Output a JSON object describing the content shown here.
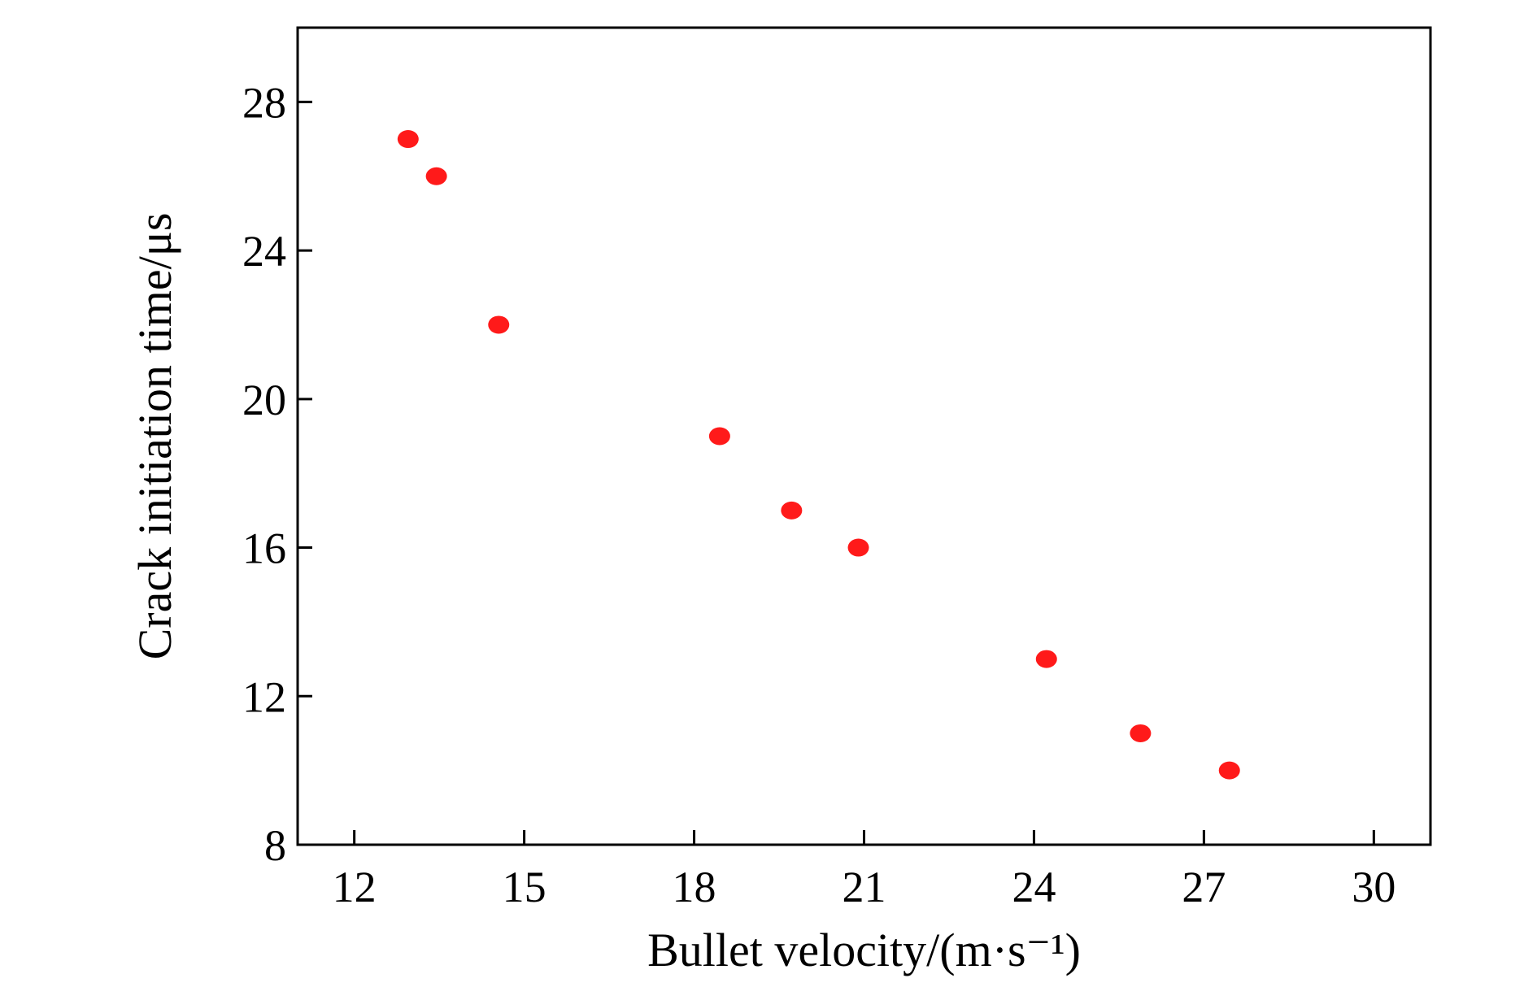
{
  "chart_data": {
    "type": "scatter",
    "title": "",
    "xlabel": "Bullet velocity/(m·s⁻¹)",
    "ylabel": "Crack initiation time/μs",
    "xlim": [
      11,
      31
    ],
    "ylim": [
      8,
      30
    ],
    "xticks": [
      12,
      15,
      18,
      21,
      24,
      27,
      30
    ],
    "yticks": [
      8,
      12,
      16,
      20,
      24,
      28
    ],
    "grid": false,
    "legend": "none",
    "marker_color": "#ff1a1a",
    "series": [
      {
        "points": [
          {
            "x": 12.95,
            "y": 27
          },
          {
            "x": 13.45,
            "y": 26
          },
          {
            "x": 14.55,
            "y": 22
          },
          {
            "x": 18.45,
            "y": 19
          },
          {
            "x": 19.72,
            "y": 17
          },
          {
            "x": 20.9,
            "y": 16
          },
          {
            "x": 24.22,
            "y": 13
          },
          {
            "x": 25.88,
            "y": 11
          },
          {
            "x": 27.45,
            "y": 10
          }
        ]
      }
    ]
  }
}
